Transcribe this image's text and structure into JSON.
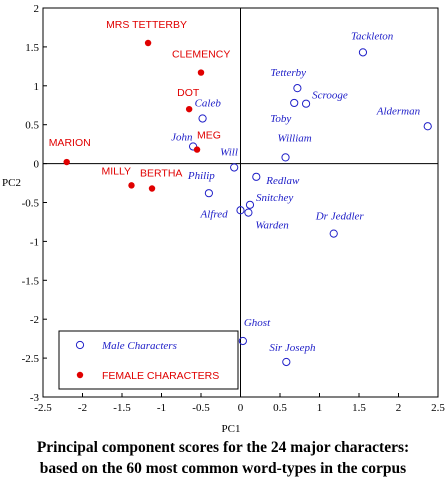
{
  "chart_data": {
    "type": "scatter",
    "title": "",
    "xlabel": "PC1",
    "ylabel": "PC2",
    "xlim": [
      -2.5,
      2.5
    ],
    "ylim": [
      -3,
      2
    ],
    "xticks": [
      "-2.5",
      "-2",
      "-1.5",
      "-1",
      "-0.5",
      "0",
      "0.5",
      "1",
      "1.5",
      "2",
      "2.5"
    ],
    "yticks": [
      "2",
      "1.5",
      "1",
      "0.5",
      "0",
      "-0.5",
      "-1",
      "-1.5",
      "-2",
      "-2.5",
      "-3"
    ],
    "reference_lines": {
      "x": 0,
      "y": 0
    },
    "legend_position": "bottom-left",
    "series": [
      {
        "name": "Male Characters",
        "marker": "open-circle",
        "color": "#2020c8",
        "points": [
          {
            "label": "Tackleton",
            "x": 1.55,
            "y": 1.43
          },
          {
            "label": "Tetterby",
            "x": 0.72,
            "y": 0.97
          },
          {
            "label": "Scrooge",
            "x": 0.83,
            "y": 0.77
          },
          {
            "label": "Toby",
            "x": 0.68,
            "y": 0.78
          },
          {
            "label": "Alderman",
            "x": 2.37,
            "y": 0.48
          },
          {
            "label": "Caleb",
            "x": -0.48,
            "y": 0.58
          },
          {
            "label": "John",
            "x": -0.6,
            "y": 0.22
          },
          {
            "label": "William",
            "x": 0.57,
            "y": 0.08
          },
          {
            "label": "Will",
            "x": -0.08,
            "y": -0.05
          },
          {
            "label": "Philip",
            "x": -0.4,
            "y": -0.38
          },
          {
            "label": "Redlaw",
            "x": 0.2,
            "y": -0.17
          },
          {
            "label": "Snitchey",
            "x": 0.12,
            "y": -0.53
          },
          {
            "label": "Alfred",
            "x": 0.0,
            "y": -0.6
          },
          {
            "label": "",
            "x": 0.1,
            "y": -0.63
          },
          {
            "label": "Dr Jeddler",
            "x": 1.18,
            "y": -0.9
          },
          {
            "label": "Ghost",
            "x": 0.03,
            "y": -2.28
          },
          {
            "label": "Sir Joseph",
            "x": 0.58,
            "y": -2.55
          }
        ],
        "label_texts": [
          "Tackleton",
          "Tetterby",
          "Scrooge",
          "Toby",
          "Alderman",
          "Caleb",
          "John",
          "William",
          "Will",
          "Philip",
          "Redlaw",
          "Snitchey",
          "Alfred",
          "Warden",
          "Dr Jeddler",
          "Ghost",
          "Sir Joseph"
        ]
      },
      {
        "name": "FEMALE CHARACTERS",
        "marker": "filled-circle",
        "color": "#e00000",
        "points": [
          {
            "label": "MRS TETTERBY",
            "x": -1.17,
            "y": 1.55
          },
          {
            "label": "CLEMENCY",
            "x": -0.5,
            "y": 1.17
          },
          {
            "label": "DOT",
            "x": -0.65,
            "y": 0.7
          },
          {
            "label": "MEG",
            "x": -0.55,
            "y": 0.18
          },
          {
            "label": "MARION",
            "x": -2.2,
            "y": 0.02
          },
          {
            "label": "MILLY",
            "x": -1.38,
            "y": -0.28
          },
          {
            "label": "BERTHA",
            "x": -1.12,
            "y": -0.32
          }
        ],
        "label_texts": [
          "MRS TETTERBY",
          "CLEMENCY",
          "DOT",
          "MEG",
          "MARION",
          "MILLY",
          "BERTHA"
        ]
      }
    ],
    "legend": {
      "male": "Male Characters",
      "female": "FEMALE CHARACTERS"
    }
  },
  "caption": {
    "line1": "Principal component scores for the 24 major characters:",
    "line2": "based on the 60 most common word-types in the corpus"
  }
}
